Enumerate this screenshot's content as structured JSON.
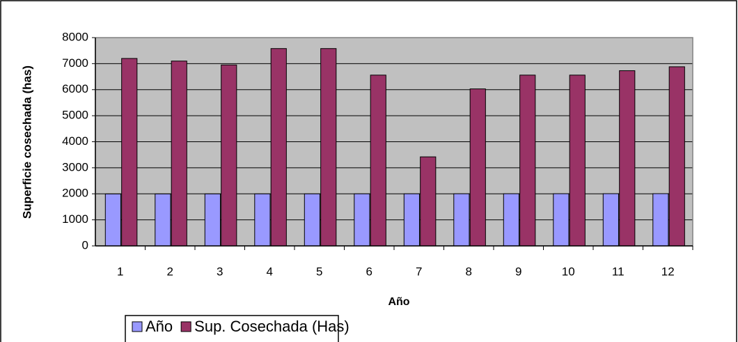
{
  "chart_data": {
    "type": "bar",
    "categories": [
      "1",
      "2",
      "3",
      "4",
      "5",
      "6",
      "7",
      "8",
      "9",
      "10",
      "11",
      "12"
    ],
    "series": [
      {
        "name": "Año",
        "color": "#9999ff",
        "values": [
          1995,
          1996,
          1997,
          1998,
          1999,
          2000,
          2001,
          2002,
          2003,
          2004,
          2005,
          2006
        ]
      },
      {
        "name": "Sup. Cosechada (Has)",
        "color": "#993366",
        "values": [
          7200,
          7100,
          6950,
          7580,
          7580,
          6560,
          3420,
          6030,
          6560,
          6560,
          6730,
          6880
        ]
      }
    ],
    "y_label": "Superficie cosechada (has)",
    "x_label": "Año",
    "ylim": [
      0,
      8000
    ],
    "yticks": [
      0,
      1000,
      2000,
      3000,
      4000,
      5000,
      6000,
      7000,
      8000
    ],
    "grid": true,
    "legend": "bottom",
    "plot_background": "#c0c0c0"
  }
}
